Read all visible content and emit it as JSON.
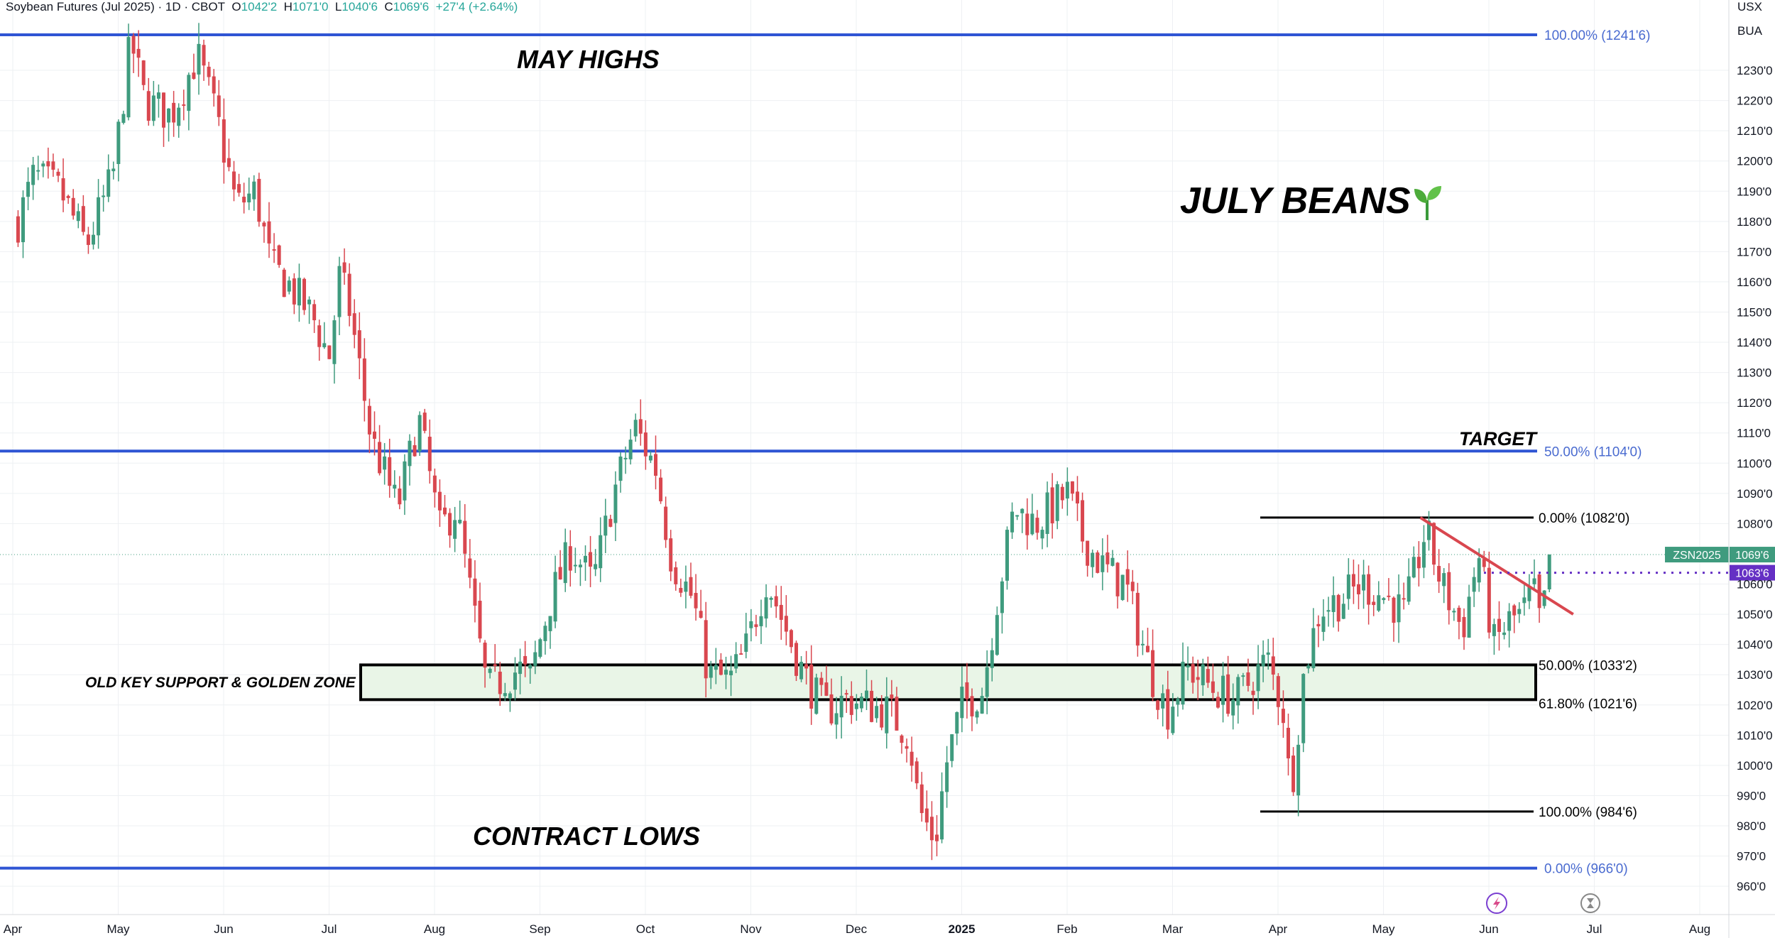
{
  "header": {
    "symbol": "Soybean Futures (Jul 2025) · 1D · CBOT",
    "o_key": "O",
    "o_val": "1042'2",
    "h_key": "H",
    "h_val": "1071'0",
    "l_key": "L",
    "l_val": "1040'6",
    "c_key": "C",
    "c_val": "1069'6",
    "change": "+27'4 (+2.64%)"
  },
  "currency": "USX",
  "unit": "BUA",
  "colors": {
    "up": "#3f9b7e",
    "down": "#d9474f",
    "blue": "#2f55d4",
    "blue_text": "#4a6bd0",
    "trend": "#d9474f",
    "zone_fill": "#e9f5e7",
    "grid": "#eef0f3",
    "price_tag": "#3f9b7e",
    "purple": "#6530c4"
  },
  "chart_data": {
    "type": "candlestick",
    "title": "JULY BEANS",
    "title_icon": "seedling-icon",
    "price_unit": "cents/bushel (eighths notation)",
    "y_range": [
      956,
      1250
    ],
    "y_ticks": [
      {
        "v": 1230,
        "t": "1230'0"
      },
      {
        "v": 1220,
        "t": "1220'0"
      },
      {
        "v": 1210,
        "t": "1210'0"
      },
      {
        "v": 1200,
        "t": "1200'0"
      },
      {
        "v": 1190,
        "t": "1190'0"
      },
      {
        "v": 1180,
        "t": "1180'0"
      },
      {
        "v": 1170,
        "t": "1170'0"
      },
      {
        "v": 1160,
        "t": "1160'0"
      },
      {
        "v": 1150,
        "t": "1150'0"
      },
      {
        "v": 1140,
        "t": "1140'0"
      },
      {
        "v": 1130,
        "t": "1130'0"
      },
      {
        "v": 1120,
        "t": "1120'0"
      },
      {
        "v": 1110,
        "t": "1110'0"
      },
      {
        "v": 1100,
        "t": "1100'0"
      },
      {
        "v": 1090,
        "t": "1090'0"
      },
      {
        "v": 1080,
        "t": "1080'0"
      },
      {
        "v": 1060,
        "t": "1060'0"
      },
      {
        "v": 1050,
        "t": "1050'0"
      },
      {
        "v": 1040,
        "t": "1040'0"
      },
      {
        "v": 1030,
        "t": "1030'0"
      },
      {
        "v": 1020,
        "t": "1020'0"
      },
      {
        "v": 1010,
        "t": "1010'0"
      },
      {
        "v": 1000,
        "t": "1000'0"
      },
      {
        "v": 990,
        "t": "990'0"
      },
      {
        "v": 980,
        "t": "980'0"
      },
      {
        "v": 970,
        "t": "970'0"
      },
      {
        "v": 960,
        "t": "960'0"
      }
    ],
    "x_ticks": [
      {
        "m": 0,
        "t": "Apr"
      },
      {
        "m": 1,
        "t": "May"
      },
      {
        "m": 2,
        "t": "Jun"
      },
      {
        "m": 3,
        "t": "Jul"
      },
      {
        "m": 4,
        "t": "Aug"
      },
      {
        "m": 5,
        "t": "Sep"
      },
      {
        "m": 6,
        "t": "Oct"
      },
      {
        "m": 7,
        "t": "Nov"
      },
      {
        "m": 8,
        "t": "Dec"
      },
      {
        "m": 9,
        "t": "2025",
        "bold": true
      },
      {
        "m": 10,
        "t": "Feb"
      },
      {
        "m": 11,
        "t": "Mar"
      },
      {
        "m": 12,
        "t": "Apr"
      },
      {
        "m": 13,
        "t": "May"
      },
      {
        "m": 14,
        "t": "Jun"
      },
      {
        "m": 15,
        "t": "Jul"
      },
      {
        "m": 16,
        "t": "Aug"
      }
    ],
    "price_path": [
      [
        0.05,
        1180
      ],
      [
        0.2,
        1195
      ],
      [
        0.45,
        1190
      ],
      [
        0.7,
        1172
      ],
      [
        0.95,
        1195
      ],
      [
        1.12,
        1240
      ],
      [
        1.25,
        1220
      ],
      [
        1.5,
        1215
      ],
      [
        1.75,
        1235
      ],
      [
        1.95,
        1212
      ],
      [
        2.12,
        1185
      ],
      [
        2.3,
        1190
      ],
      [
        2.45,
        1165
      ],
      [
        2.6,
        1160
      ],
      [
        2.85,
        1148
      ],
      [
        3.0,
        1135
      ],
      [
        3.1,
        1162
      ],
      [
        3.2,
        1150
      ],
      [
        3.4,
        1108
      ],
      [
        3.65,
        1085
      ],
      [
        3.85,
        1115
      ],
      [
        4.05,
        1078
      ],
      [
        4.2,
        1085
      ],
      [
        4.35,
        1055
      ],
      [
        4.5,
        1025
      ],
      [
        4.8,
        1032
      ],
      [
        4.9,
        1028
      ],
      [
        5.1,
        1055
      ],
      [
        5.3,
        1072
      ],
      [
        5.5,
        1060
      ],
      [
        5.7,
        1090
      ],
      [
        5.9,
        1112
      ],
      [
        6.1,
        1098
      ],
      [
        6.25,
        1068
      ],
      [
        6.45,
        1055
      ],
      [
        6.6,
        1030
      ],
      [
        6.8,
        1028
      ],
      [
        6.95,
        1038
      ],
      [
        7.15,
        1062
      ],
      [
        7.3,
        1048
      ],
      [
        7.5,
        1030
      ],
      [
        7.7,
        1018
      ],
      [
        7.9,
        1022
      ],
      [
        8.1,
        1020
      ],
      [
        8.3,
        1018
      ],
      [
        8.5,
        1010
      ],
      [
        8.6,
        985
      ],
      [
        8.75,
        975
      ],
      [
        8.85,
        1000
      ],
      [
        9.0,
        1020
      ],
      [
        9.2,
        1025
      ],
      [
        9.35,
        1058
      ],
      [
        9.5,
        1085
      ],
      [
        9.7,
        1080
      ],
      [
        10.0,
        1090
      ],
      [
        10.15,
        1075
      ],
      [
        10.35,
        1065
      ],
      [
        10.55,
        1060
      ],
      [
        10.8,
        1030
      ],
      [
        10.95,
        1018
      ],
      [
        11.15,
        1032
      ],
      [
        11.4,
        1025
      ],
      [
        11.6,
        1022
      ],
      [
        11.9,
        1035
      ],
      [
        12.05,
        1018
      ],
      [
        12.12,
        990
      ],
      [
        12.25,
        1032
      ],
      [
        12.4,
        1052
      ],
      [
        12.6,
        1055
      ],
      [
        12.8,
        1060
      ],
      [
        13.05,
        1055
      ],
      [
        13.2,
        1050
      ],
      [
        13.4,
        1078
      ],
      [
        13.55,
        1060
      ],
      [
        13.75,
        1045
      ],
      [
        13.9,
        1070
      ],
      [
        14.05,
        1040
      ],
      [
        14.2,
        1048
      ],
      [
        14.32,
        1050
      ],
      [
        14.42,
        1058
      ],
      [
        14.5,
        1045
      ],
      [
        14.58,
        1069.75
      ]
    ],
    "blue_levels": [
      {
        "v": 1241.75,
        "label": "100.00% (1241'6)"
      },
      {
        "v": 1104,
        "label": "50.00% (1104'0)"
      },
      {
        "v": 966,
        "label": "0.00% (966'0)"
      }
    ],
    "fib_levels": [
      {
        "v": 1082,
        "label": "0.00% (1082'0)"
      },
      {
        "v": 1033.25,
        "label": "50.00% (1033'2)"
      },
      {
        "v": 1021.75,
        "label": "61.80% (1021'6)"
      },
      {
        "v": 984.75,
        "label": "100.00% (984'6)"
      }
    ],
    "zone": {
      "top": 1033.25,
      "bottom": 1021.75,
      "label": "OLD KEY SUPPORT & GOLDEN ZONE"
    },
    "trendline": {
      "from": [
        13.35,
        1082
      ],
      "to": [
        14.8,
        1050
      ]
    },
    "purple_level": {
      "v": 1063.75,
      "label": "1063'6"
    },
    "last_price": {
      "v": 1069.75,
      "symbol": "ZSN2025",
      "label": "1069'6"
    },
    "annotations": {
      "may_highs": "MAY HIGHS",
      "target": "TARGET",
      "contract_lows": "CONTRACT LOWS"
    }
  }
}
